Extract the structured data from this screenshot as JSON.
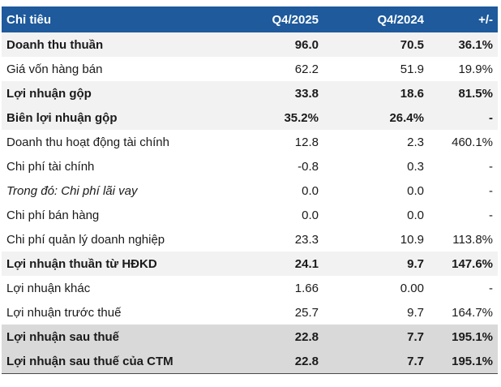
{
  "table": {
    "headers": {
      "label": "Chỉ tiêu",
      "q4_2025": "Q4/2025",
      "q4_2024": "Q4/2024",
      "change": "+/-"
    },
    "rows": [
      {
        "label": "Doanh thu thuần",
        "q4_2025": "96.0",
        "q4_2024": "70.5",
        "change": "36.1%",
        "style": "bold",
        "shade": "light"
      },
      {
        "label": "Giá vốn hàng bán",
        "q4_2025": "62.2",
        "q4_2024": "51.9",
        "change": "19.9%",
        "style": "normal",
        "shade": "none"
      },
      {
        "label": "Lợi nhuận gộp",
        "q4_2025": "33.8",
        "q4_2024": "18.6",
        "change": "81.5%",
        "style": "bold",
        "shade": "light"
      },
      {
        "label": "Biên lợi nhuận gộp",
        "q4_2025": "35.2%",
        "q4_2024": "26.4%",
        "change": "-",
        "style": "bold",
        "shade": "light"
      },
      {
        "label": "Doanh thu hoạt động tài chính",
        "q4_2025": "12.8",
        "q4_2024": "2.3",
        "change": "460.1%",
        "style": "normal",
        "shade": "none"
      },
      {
        "label": "Chi phí tài chính",
        "q4_2025": "-0.8",
        "q4_2024": "0.3",
        "change": "-",
        "style": "normal",
        "shade": "none"
      },
      {
        "label": "Trong đó: Chi phí lãi vay",
        "q4_2025": "0.0",
        "q4_2024": "0.0",
        "change": "-",
        "style": "italic",
        "shade": "none"
      },
      {
        "label": "Chi phí bán hàng",
        "q4_2025": "0.0",
        "q4_2024": "0.0",
        "change": "-",
        "style": "normal",
        "shade": "none"
      },
      {
        "label": "Chi phí quản lý doanh nghiệp",
        "q4_2025": "23.3",
        "q4_2024": "10.9",
        "change": "113.8%",
        "style": "normal",
        "shade": "none"
      },
      {
        "label": "Lợi nhuận thuần từ HĐKD",
        "q4_2025": "24.1",
        "q4_2024": "9.7",
        "change": "147.6%",
        "style": "bold",
        "shade": "light"
      },
      {
        "label": "Lợi nhuận khác",
        "q4_2025": "1.66",
        "q4_2024": "0.00",
        "change": "-",
        "style": "normal",
        "shade": "none"
      },
      {
        "label": "Lợi nhuận trước thuế",
        "q4_2025": "25.7",
        "q4_2024": "9.7",
        "change": "164.7%",
        "style": "normal",
        "shade": "none"
      },
      {
        "label": "Lợi nhuận sau thuế",
        "q4_2025": "22.8",
        "q4_2024": "7.7",
        "change": "195.1%",
        "style": "bold",
        "shade": "dark"
      },
      {
        "label": "Lợi nhuận sau thuế của CTM",
        "q4_2025": "22.8",
        "q4_2024": "7.7",
        "change": "195.1%",
        "style": "bold",
        "shade": "dark"
      }
    ]
  },
  "colors": {
    "header_bg": "#1e5a9c",
    "header_text": "#ffffff",
    "row_light": "#f2f2f2",
    "row_dark": "#d9d9d9"
  }
}
